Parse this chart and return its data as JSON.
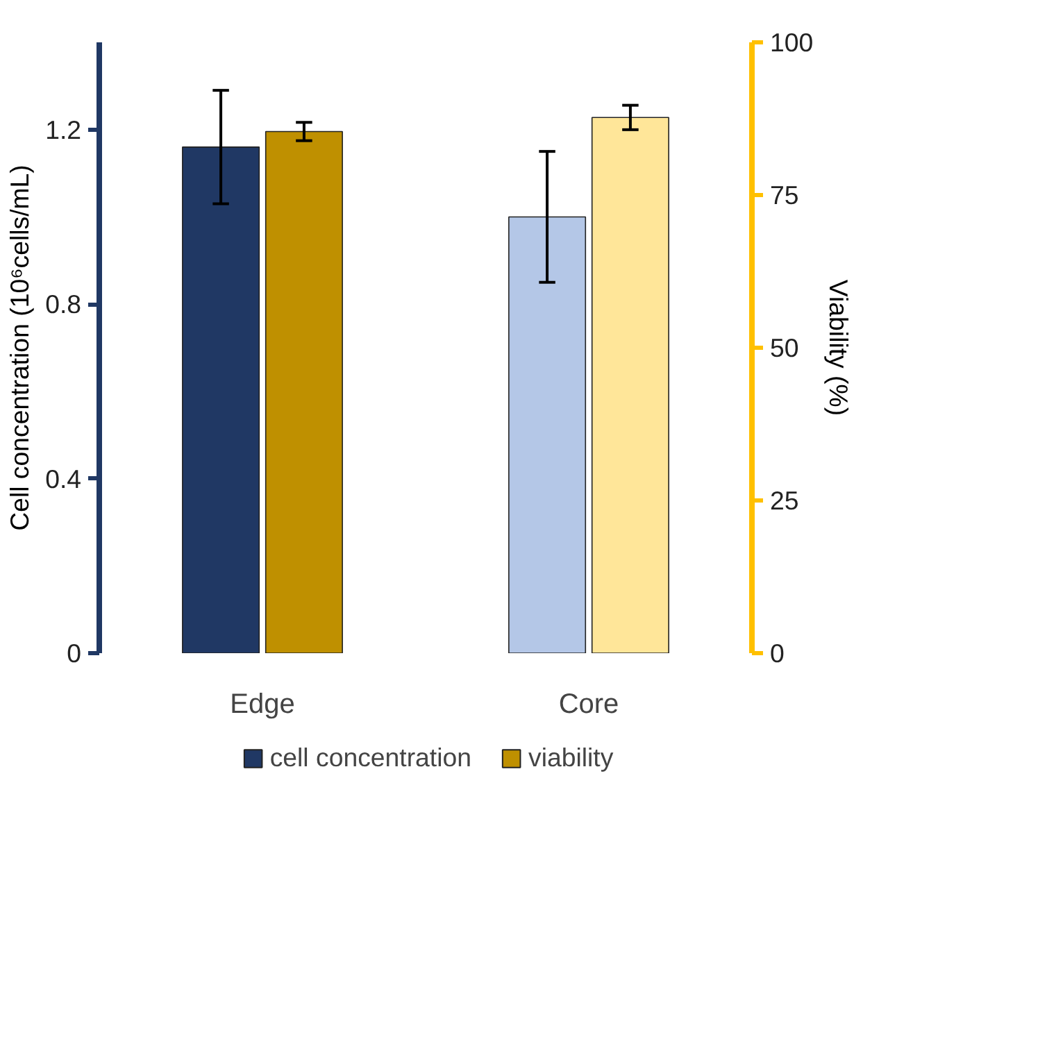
{
  "chart_data": {
    "type": "bar",
    "categories": [
      "Edge",
      "Core"
    ],
    "ylabel": "Cell concentration (10⁶cells/mL)",
    "y2label": "Viability (%)",
    "ylim": [
      0,
      1.4
    ],
    "yticks": [
      0,
      0.4,
      0.8,
      1.2
    ],
    "y2lim": [
      0,
      100
    ],
    "y2ticks": [
      0,
      25,
      50,
      75,
      100
    ],
    "grid": false,
    "legend": "bottom",
    "series": [
      {
        "name": "cell concentration",
        "colors": [
          "#203864",
          "#b4c7e7"
        ],
        "values": [
          1.16,
          1.0
        ],
        "errors": [
          0.13,
          0.15
        ]
      },
      {
        "name": "viability",
        "colors": [
          "#bf9000",
          "#ffe699"
        ],
        "values": [
          85.4,
          87.7
        ],
        "errors": [
          1.5,
          2
        ],
        "axis": "y2"
      }
    ]
  }
}
